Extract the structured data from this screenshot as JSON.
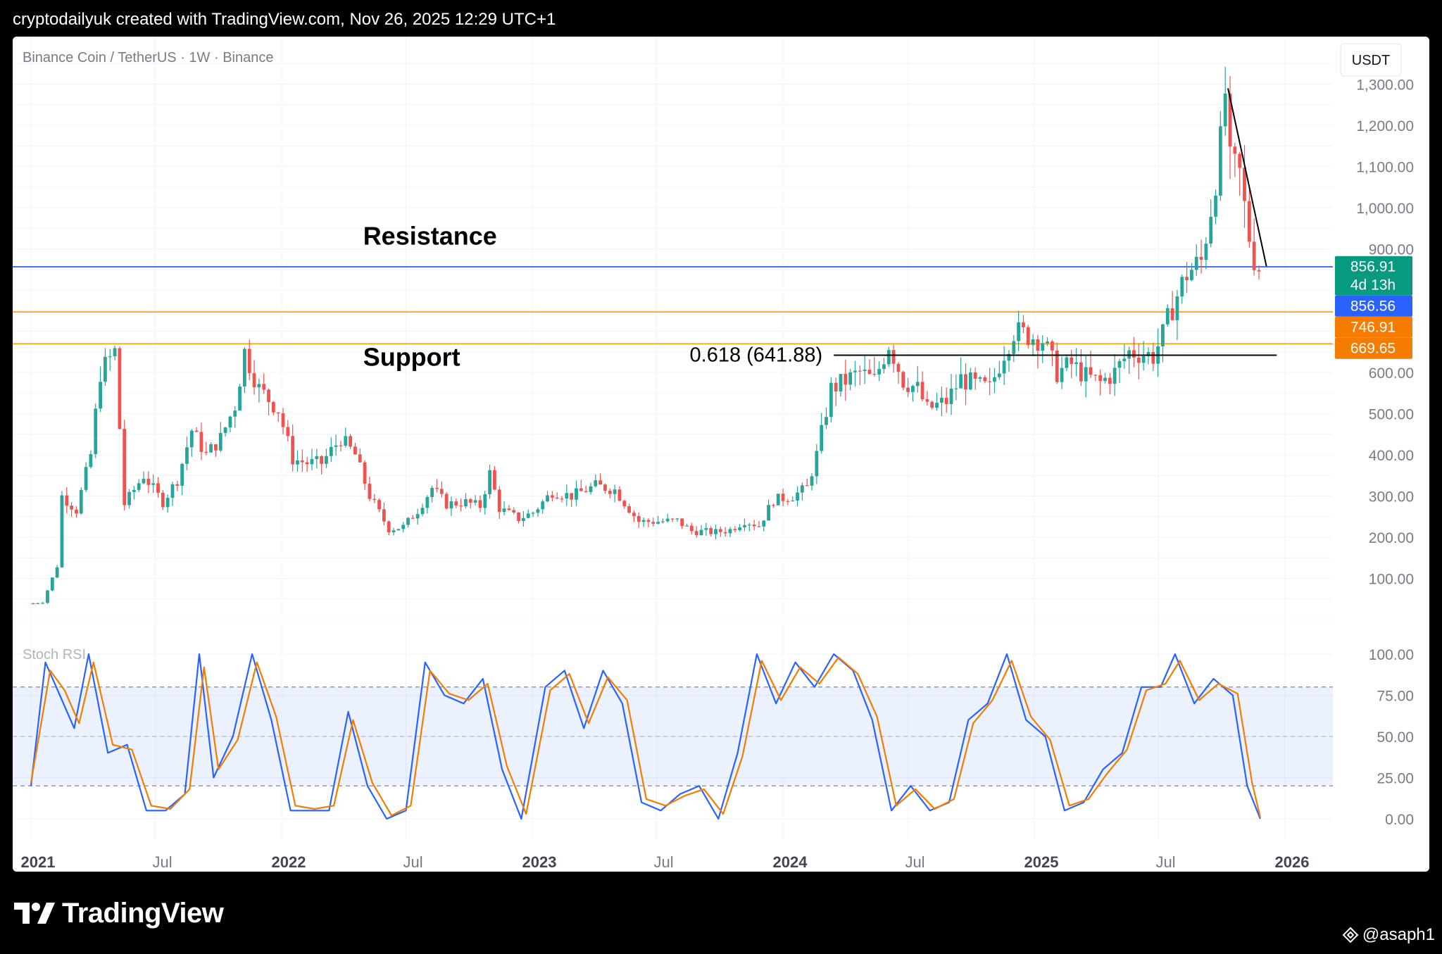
{
  "header": {
    "attribution": "cryptodailyuk created with TradingView.com, Nov 26, 2025 12:29 UTC+1"
  },
  "chart": {
    "symbol_title": "Binance Coin / TetherUS · 1W · Binance",
    "currency_button": "USDT",
    "indicator_label": "Stoch RSI"
  },
  "footer": {
    "brand": "TradingView",
    "author": "@asaph1",
    "author_icon": "binance-square-icon",
    "logo_icon": "tradingview-logo-icon"
  },
  "chart_data": [
    {
      "type": "candlestick",
      "title": "Binance Coin / TetherUS · 1W · Binance",
      "ylim": [
        0,
        1400
      ],
      "y_ticks": [
        100,
        200,
        300,
        400,
        500,
        600,
        700,
        800,
        900,
        1000,
        1100,
        1200,
        1300
      ],
      "y_tick_labels": [
        "100.00",
        "200.00",
        "300.00",
        "400.00",
        "500.00",
        "600.00",
        "",
        "",
        "900.00",
        "1,000.00",
        "1,100.00",
        "1,200.00",
        "1,300.00"
      ],
      "x_ticks": [
        "2021-01-01",
        "2021-07-01",
        "2022-01-01",
        "2022-07-01",
        "2023-01-01",
        "2023-07-01",
        "2024-01-01",
        "2024-07-01",
        "2025-01-01",
        "2025-07-01",
        "2026-01-01"
      ],
      "x_tick_labels": [
        "2021",
        "Jul",
        "2022",
        "Jul",
        "2023",
        "Jul",
        "2024",
        "Jul",
        "2025",
        "Jul",
        "2026"
      ],
      "grid": true,
      "colors": {
        "up": "#26a69a",
        "down": "#ef5350",
        "grid": "#f0f3fa",
        "axis_text": "#131722"
      },
      "price_path": [
        [
          "2021-01-01",
          38
        ],
        [
          "2021-01-22",
          42
        ],
        [
          "2021-02-12",
          130
        ],
        [
          "2021-02-19",
          300
        ],
        [
          "2021-03-12",
          265
        ],
        [
          "2021-04-02",
          400
        ],
        [
          "2021-04-16",
          600
        ],
        [
          "2021-05-07",
          650
        ],
        [
          "2021-05-21",
          280
        ],
        [
          "2021-06-18",
          350
        ],
        [
          "2021-07-16",
          285
        ],
        [
          "2021-08-06",
          340
        ],
        [
          "2021-08-27",
          460
        ],
        [
          "2021-09-17",
          400
        ],
        [
          "2021-10-08",
          440
        ],
        [
          "2021-10-29",
          520
        ],
        [
          "2021-11-12",
          650
        ],
        [
          "2021-12-03",
          560
        ],
        [
          "2021-12-31",
          510
        ],
        [
          "2022-01-21",
          390
        ],
        [
          "2022-02-11",
          380
        ],
        [
          "2022-03-04",
          380
        ],
        [
          "2022-04-01",
          440
        ],
        [
          "2022-04-22",
          400
        ],
        [
          "2022-05-13",
          300
        ],
        [
          "2022-06-10",
          220
        ],
        [
          "2022-07-01",
          225
        ],
        [
          "2022-07-22",
          265
        ],
        [
          "2022-08-12",
          320
        ],
        [
          "2022-09-02",
          280
        ],
        [
          "2022-09-30",
          285
        ],
        [
          "2022-10-21",
          275
        ],
        [
          "2022-11-04",
          355
        ],
        [
          "2022-11-18",
          270
        ],
        [
          "2022-12-16",
          245
        ],
        [
          "2023-01-06",
          260
        ],
        [
          "2023-02-03",
          310
        ],
        [
          "2023-03-03",
          300
        ],
        [
          "2023-04-07",
          325
        ],
        [
          "2023-05-05",
          315
        ],
        [
          "2023-06-09",
          238
        ],
        [
          "2023-07-07",
          238
        ],
        [
          "2023-08-04",
          240
        ],
        [
          "2023-08-25",
          215
        ],
        [
          "2023-09-29",
          212
        ],
        [
          "2023-10-20",
          218
        ],
        [
          "2023-11-10",
          240
        ],
        [
          "2023-12-01",
          228
        ],
        [
          "2023-12-22",
          290
        ],
        [
          "2024-01-19",
          300
        ],
        [
          "2024-02-09",
          320
        ],
        [
          "2024-02-23",
          400
        ],
        [
          "2024-03-15",
          560
        ],
        [
          "2024-04-05",
          580
        ],
        [
          "2024-04-26",
          600
        ],
        [
          "2024-05-17",
          580
        ],
        [
          "2024-06-07",
          670
        ],
        [
          "2024-06-28",
          580
        ],
        [
          "2024-07-19",
          560
        ],
        [
          "2024-08-02",
          510
        ],
        [
          "2024-08-30",
          530
        ],
        [
          "2024-09-20",
          585
        ],
        [
          "2024-10-11",
          570
        ],
        [
          "2024-11-01",
          560
        ],
        [
          "2024-11-22",
          650
        ],
        [
          "2024-12-06",
          700
        ],
        [
          "2024-12-27",
          690
        ],
        [
          "2025-01-17",
          680
        ],
        [
          "2025-02-07",
          600
        ],
        [
          "2025-02-28",
          620
        ],
        [
          "2025-03-21",
          590
        ],
        [
          "2025-04-11",
          575
        ],
        [
          "2025-05-02",
          600
        ],
        [
          "2025-05-23",
          650
        ],
        [
          "2025-06-13",
          645
        ],
        [
          "2025-06-27",
          640
        ],
        [
          "2025-07-11",
          690
        ],
        [
          "2025-07-25",
          760
        ],
        [
          "2025-08-15",
          840
        ],
        [
          "2025-09-05",
          870
        ],
        [
          "2025-09-19",
          1000
        ],
        [
          "2025-10-03",
          1150
        ],
        [
          "2025-10-10",
          1280
        ],
        [
          "2025-10-17",
          1100
        ],
        [
          "2025-10-31",
          1080
        ],
        [
          "2025-11-07",
          1000
        ],
        [
          "2025-11-14",
          930
        ],
        [
          "2025-11-21",
          880
        ],
        [
          "2025-11-26",
          856.91
        ]
      ],
      "price_labels": [
        {
          "value": 856.91,
          "text": "856.91",
          "sub": "4d 13h",
          "color": "#089981"
        },
        {
          "value": 856.56,
          "text": "856.56",
          "sub": "",
          "color": "#2962ff"
        },
        {
          "value": 746.91,
          "text": "746.91",
          "sub": "",
          "color": "#f57c00"
        },
        {
          "value": 669.65,
          "text": "669.65",
          "sub": "",
          "color": "#f57c00"
        }
      ],
      "horizontal_lines": [
        {
          "value": 856.56,
          "color": "#1e53e5"
        },
        {
          "value": 746.91,
          "color": "#ff9800"
        },
        {
          "value": 669.65,
          "color": "#ff9800"
        }
      ],
      "fib_line": {
        "value": 641.88,
        "label": "0.618 (641.88)",
        "from": "2024-03-15",
        "to": "2025-12-20"
      },
      "trendline": {
        "from": [
          "2025-10-10",
          1290
        ],
        "to": [
          "2025-12-05",
          858
        ]
      },
      "annotations": [
        {
          "text": "Resistance",
          "date": "2022-05-15",
          "value": 910
        },
        {
          "text": "Support",
          "date": "2022-05-15",
          "value": 616
        }
      ]
    },
    {
      "type": "line",
      "title": "Stoch RSI",
      "ylim": [
        0,
        100
      ],
      "y_ticks": [
        0,
        25,
        50,
        75,
        100
      ],
      "y_tick_labels": [
        "0.00",
        "25.00",
        "50.00",
        "75.00",
        "100.00"
      ],
      "bands": {
        "upper": 80,
        "middle": 50,
        "lower": 20
      },
      "series": [
        {
          "color": "#2962ff",
          "path": [
            [
              "2021-01-01",
              20
            ],
            [
              "2021-01-22",
              95
            ],
            [
              "2021-02-12",
              75
            ],
            [
              "2021-03-05",
              55
            ],
            [
              "2021-03-26",
              100
            ],
            [
              "2021-04-23",
              40
            ],
            [
              "2021-05-21",
              45
            ],
            [
              "2021-06-18",
              5
            ],
            [
              "2021-07-16",
              5
            ],
            [
              "2021-08-13",
              15
            ],
            [
              "2021-09-03",
              100
            ],
            [
              "2021-09-24",
              25
            ],
            [
              "2021-10-22",
              50
            ],
            [
              "2021-11-19",
              100
            ],
            [
              "2021-12-17",
              60
            ],
            [
              "2022-01-14",
              5
            ],
            [
              "2022-02-11",
              5
            ],
            [
              "2022-03-11",
              5
            ],
            [
              "2022-04-08",
              65
            ],
            [
              "2022-05-06",
              20
            ],
            [
              "2022-06-03",
              0
            ],
            [
              "2022-07-01",
              5
            ],
            [
              "2022-07-29",
              95
            ],
            [
              "2022-08-26",
              75
            ],
            [
              "2022-09-23",
              70
            ],
            [
              "2022-10-21",
              85
            ],
            [
              "2022-11-18",
              30
            ],
            [
              "2022-12-16",
              0
            ],
            [
              "2023-01-20",
              80
            ],
            [
              "2023-02-17",
              90
            ],
            [
              "2023-03-17",
              55
            ],
            [
              "2023-04-14",
              90
            ],
            [
              "2023-05-12",
              70
            ],
            [
              "2023-06-09",
              10
            ],
            [
              "2023-07-07",
              5
            ],
            [
              "2023-08-04",
              15
            ],
            [
              "2023-09-01",
              20
            ],
            [
              "2023-09-29",
              0
            ],
            [
              "2023-10-27",
              40
            ],
            [
              "2023-11-24",
              100
            ],
            [
              "2023-12-22",
              70
            ],
            [
              "2024-01-19",
              95
            ],
            [
              "2024-02-16",
              80
            ],
            [
              "2024-03-15",
              100
            ],
            [
              "2024-04-12",
              90
            ],
            [
              "2024-05-10",
              60
            ],
            [
              "2024-06-07",
              5
            ],
            [
              "2024-07-05",
              20
            ],
            [
              "2024-08-02",
              5
            ],
            [
              "2024-08-30",
              10
            ],
            [
              "2024-09-27",
              60
            ],
            [
              "2024-10-25",
              70
            ],
            [
              "2024-11-22",
              100
            ],
            [
              "2024-12-20",
              60
            ],
            [
              "2025-01-17",
              50
            ],
            [
              "2025-02-14",
              5
            ],
            [
              "2025-03-14",
              10
            ],
            [
              "2025-04-11",
              30
            ],
            [
              "2025-05-09",
              40
            ],
            [
              "2025-06-06",
              80
            ],
            [
              "2025-07-04",
              80
            ],
            [
              "2025-07-25",
              100
            ],
            [
              "2025-08-22",
              70
            ],
            [
              "2025-09-19",
              85
            ],
            [
              "2025-10-17",
              75
            ],
            [
              "2025-11-07",
              20
            ],
            [
              "2025-11-26",
              0
            ]
          ]
        },
        {
          "color": "#f57c00",
          "path": [
            [
              "2021-01-01",
              22
            ],
            [
              "2021-01-29",
              90
            ],
            [
              "2021-02-19",
              78
            ],
            [
              "2021-03-12",
              58
            ],
            [
              "2021-04-02",
              95
            ],
            [
              "2021-04-30",
              45
            ],
            [
              "2021-05-28",
              42
            ],
            [
              "2021-06-25",
              8
            ],
            [
              "2021-07-23",
              6
            ],
            [
              "2021-08-20",
              18
            ],
            [
              "2021-09-10",
              92
            ],
            [
              "2021-10-01",
              30
            ],
            [
              "2021-10-29",
              48
            ],
            [
              "2021-11-26",
              95
            ],
            [
              "2021-12-24",
              62
            ],
            [
              "2022-01-21",
              8
            ],
            [
              "2022-02-18",
              6
            ],
            [
              "2022-03-18",
              8
            ],
            [
              "2022-04-15",
              60
            ],
            [
              "2022-05-13",
              22
            ],
            [
              "2022-06-10",
              2
            ],
            [
              "2022-07-08",
              8
            ],
            [
              "2022-08-05",
              90
            ],
            [
              "2022-09-02",
              76
            ],
            [
              "2022-09-30",
              72
            ],
            [
              "2022-10-28",
              82
            ],
            [
              "2022-11-25",
              32
            ],
            [
              "2022-12-23",
              3
            ],
            [
              "2023-01-27",
              78
            ],
            [
              "2023-02-24",
              88
            ],
            [
              "2023-03-24",
              58
            ],
            [
              "2023-04-21",
              86
            ],
            [
              "2023-05-19",
              72
            ],
            [
              "2023-06-16",
              12
            ],
            [
              "2023-07-14",
              8
            ],
            [
              "2023-08-11",
              14
            ],
            [
              "2023-09-08",
              18
            ],
            [
              "2023-10-06",
              3
            ],
            [
              "2023-11-03",
              38
            ],
            [
              "2023-12-01",
              96
            ],
            [
              "2023-12-29",
              72
            ],
            [
              "2024-01-26",
              92
            ],
            [
              "2024-02-23",
              82
            ],
            [
              "2024-03-22",
              98
            ],
            [
              "2024-04-19",
              88
            ],
            [
              "2024-05-17",
              62
            ],
            [
              "2024-06-14",
              8
            ],
            [
              "2024-07-12",
              18
            ],
            [
              "2024-08-09",
              6
            ],
            [
              "2024-09-06",
              12
            ],
            [
              "2024-10-04",
              58
            ],
            [
              "2024-11-01",
              72
            ],
            [
              "2024-11-29",
              96
            ],
            [
              "2024-12-27",
              62
            ],
            [
              "2025-01-24",
              48
            ],
            [
              "2025-02-21",
              8
            ],
            [
              "2025-03-21",
              12
            ],
            [
              "2025-04-18",
              28
            ],
            [
              "2025-05-16",
              42
            ],
            [
              "2025-06-13",
              78
            ],
            [
              "2025-07-11",
              82
            ],
            [
              "2025-08-01",
              96
            ],
            [
              "2025-08-29",
              72
            ],
            [
              "2025-09-26",
              82
            ],
            [
              "2025-10-24",
              76
            ],
            [
              "2025-11-14",
              22
            ],
            [
              "2025-11-26",
              1
            ]
          ]
        }
      ]
    }
  ]
}
